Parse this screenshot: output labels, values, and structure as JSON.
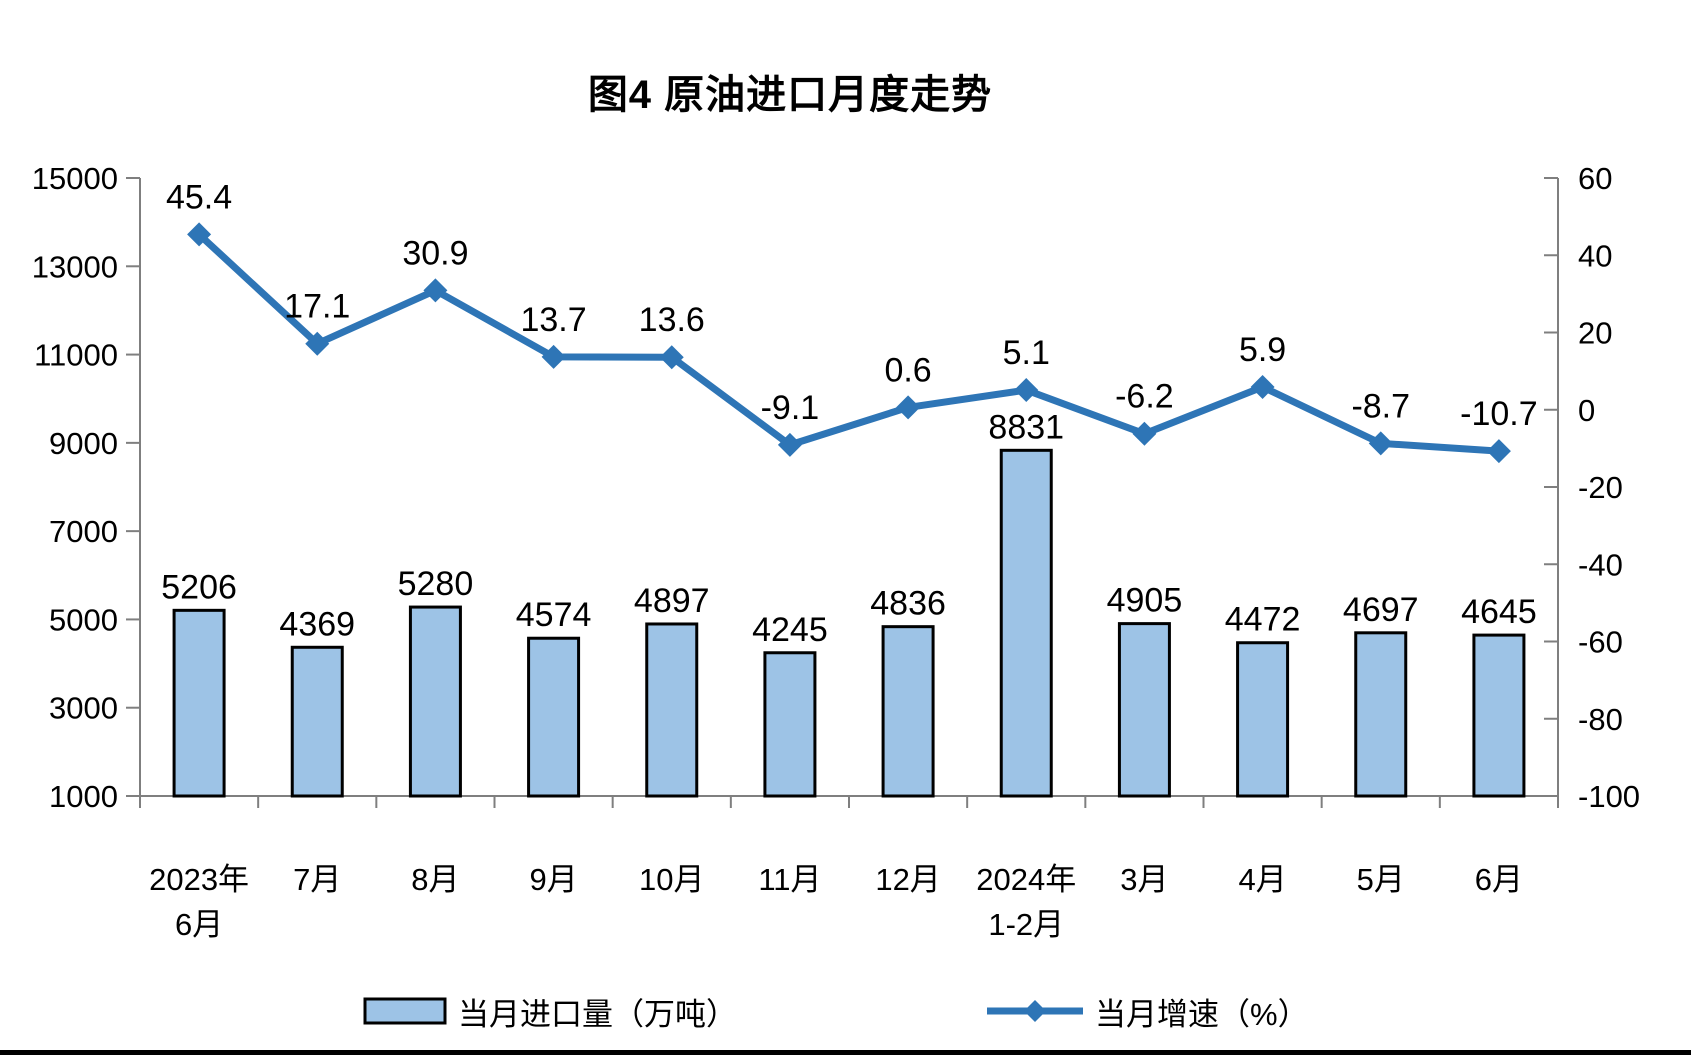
{
  "chart_data": {
    "type": "bar+line",
    "title": "图4  原油进口月度走势",
    "categories": [
      "2023年\n6月",
      "7月",
      "8月",
      "9月",
      "10月",
      "11月",
      "12月",
      "2024年\n1-2月",
      "3月",
      "4月",
      "5月",
      "6月"
    ],
    "series": [
      {
        "name": "当月进口量（万吨）",
        "type": "bar",
        "axis": "left",
        "values": [
          5206,
          4369,
          5280,
          4574,
          4897,
          4245,
          4836,
          8831,
          4905,
          4472,
          4697,
          4645
        ]
      },
      {
        "name": "当月增速（%）",
        "type": "line",
        "axis": "right",
        "values": [
          45.4,
          17.1,
          30.9,
          13.7,
          13.6,
          -9.1,
          0.6,
          5.1,
          -6.2,
          5.9,
          -8.7,
          -10.7
        ]
      }
    ],
    "y_left": {
      "min": 1000,
      "max": 15000,
      "step": 2000,
      "ticks": [
        15000,
        13000,
        11000,
        9000,
        7000,
        5000,
        3000,
        1000
      ]
    },
    "y_right": {
      "min": -100,
      "max": 60,
      "step": 20,
      "ticks": [
        60,
        40,
        20,
        0,
        -20,
        -40,
        -60,
        -80,
        -100
      ]
    },
    "legend": {
      "position": "bottom",
      "bar_label": "当月进口量（万吨）",
      "line_label": "当月增速（%）"
    },
    "colors": {
      "bar_fill": "#9DC3E6",
      "bar_border": "#000000",
      "line": "#2E75B6",
      "axis": "#7F7F7F",
      "text": "#000000"
    },
    "grid": false
  }
}
